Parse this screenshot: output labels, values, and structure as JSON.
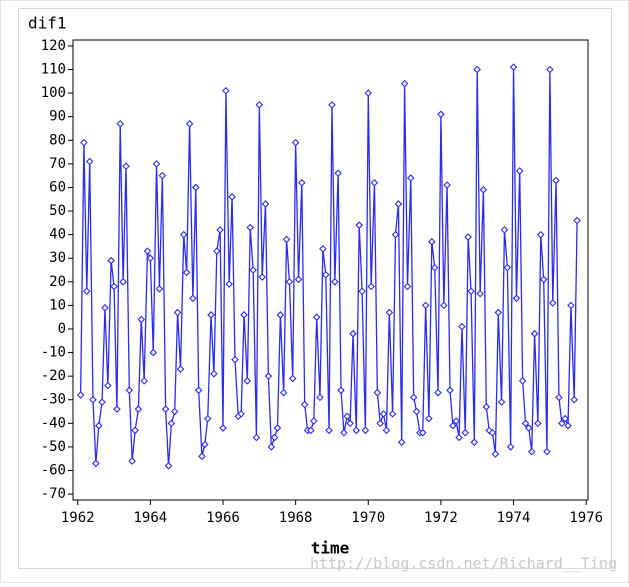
{
  "chart_data": {
    "type": "line",
    "y_label": "dif1",
    "x_label": "time",
    "watermark": "http://blog.csdn.net/Richard__Ting",
    "color": "#2b2bf0",
    "x": [
      1962.08,
      1962.17,
      1962.25,
      1962.33,
      1962.42,
      1962.5,
      1962.58,
      1962.67,
      1962.75,
      1962.83,
      1962.92,
      1963,
      1963.08,
      1963.17,
      1963.25,
      1963.33,
      1963.42,
      1963.5,
      1963.58,
      1963.67,
      1963.75,
      1963.83,
      1963.92,
      1964,
      1964.08,
      1964.17,
      1964.25,
      1964.33,
      1964.42,
      1964.5,
      1964.58,
      1964.67,
      1964.75,
      1964.83,
      1964.92,
      1965,
      1965.08,
      1965.17,
      1965.25,
      1965.33,
      1965.42,
      1965.5,
      1965.58,
      1965.67,
      1965.75,
      1965.83,
      1965.92,
      1966,
      1966.08,
      1966.17,
      1966.25,
      1966.33,
      1966.42,
      1966.5,
      1966.58,
      1966.67,
      1966.75,
      1966.83,
      1966.92,
      1967,
      1967.08,
      1967.17,
      1967.25,
      1967.33,
      1967.42,
      1967.5,
      1967.58,
      1967.67,
      1967.75,
      1967.83,
      1967.92,
      1968,
      1968.08,
      1968.17,
      1968.25,
      1968.33,
      1968.42,
      1968.5,
      1968.58,
      1968.67,
      1968.75,
      1968.83,
      1968.92,
      1969,
      1969.08,
      1969.17,
      1969.25,
      1969.33,
      1969.42,
      1969.5,
      1969.58,
      1969.67,
      1969.75,
      1969.83,
      1969.92,
      1970,
      1970.08,
      1970.17,
      1970.25,
      1970.33,
      1970.42,
      1970.5,
      1970.58,
      1970.67,
      1970.75,
      1970.83,
      1970.92,
      1971,
      1971.08,
      1971.17,
      1971.25,
      1971.33,
      1971.42,
      1971.5,
      1971.58,
      1971.67,
      1971.75,
      1971.83,
      1971.92,
      1972,
      1972.08,
      1972.17,
      1972.25,
      1972.33,
      1972.42,
      1972.5,
      1972.58,
      1972.67,
      1972.75,
      1972.83,
      1972.92,
      1973,
      1973.08,
      1973.17,
      1973.25,
      1973.33,
      1973.42,
      1973.5,
      1973.58,
      1973.67,
      1973.75,
      1973.83,
      1973.92,
      1974,
      1974.08,
      1974.17,
      1974.25,
      1974.33,
      1974.42,
      1974.5,
      1974.58,
      1974.67,
      1974.75,
      1974.83,
      1974.92,
      1975,
      1975.08,
      1975.17,
      1975.25,
      1975.33,
      1975.42,
      1975.5,
      1975.58,
      1975.67,
      1975.75
    ],
    "values": [
      -28,
      79,
      16,
      71,
      -30,
      -57,
      -41,
      -31,
      9,
      -24,
      29,
      18,
      -34,
      87,
      20,
      69,
      -26,
      -56,
      -43,
      -34,
      4,
      -22,
      33,
      30,
      -10,
      70,
      17,
      65,
      -34,
      -58,
      -40,
      -35,
      7,
      -17,
      40,
      24,
      87,
      13,
      60,
      -26,
      -54,
      -49,
      -38,
      6,
      -19,
      33,
      42,
      -42,
      101,
      19,
      56,
      -13,
      -37,
      -36,
      6,
      -22,
      43,
      25,
      -46,
      95,
      22,
      53,
      -20,
      -50,
      -46,
      -42,
      6,
      -27,
      38,
      20,
      -21,
      79,
      21,
      62,
      -32,
      -43,
      -43,
      -39,
      5,
      -29,
      34,
      23,
      -43,
      95,
      20,
      66,
      -26,
      -44,
      -37,
      -40,
      -2,
      -43,
      44,
      16,
      -43,
      100,
      18,
      62,
      -27,
      -40,
      -36,
      -43,
      7,
      -36,
      40,
      53,
      -48,
      104,
      18,
      64,
      -29,
      -35,
      -44,
      -44,
      10,
      -38,
      37,
      26,
      -27,
      91,
      10,
      61,
      -26,
      -41,
      -39,
      -46,
      1,
      -44,
      39,
      16,
      -48,
      110,
      15,
      59,
      -33,
      -43,
      -44,
      -53,
      7,
      -31,
      42,
      26,
      -50,
      111,
      13,
      67,
      -22,
      -40,
      -42,
      -52,
      -2,
      -40,
      40,
      21,
      -52,
      110,
      11,
      63,
      -29,
      -40,
      -38,
      -41,
      10,
      -30,
      46
    ],
    "xlim": [
      1961.87,
      1976.05
    ],
    "xticks": [
      1962,
      1964,
      1966,
      1968,
      1970,
      1972,
      1974,
      1976
    ],
    "ylim": [
      -72.5,
      122.5
    ],
    "yticks": [
      -70,
      -60,
      -50,
      -40,
      -30,
      -20,
      -10,
      0,
      10,
      20,
      30,
      40,
      50,
      60,
      70,
      80,
      90,
      100,
      110,
      120
    ]
  }
}
